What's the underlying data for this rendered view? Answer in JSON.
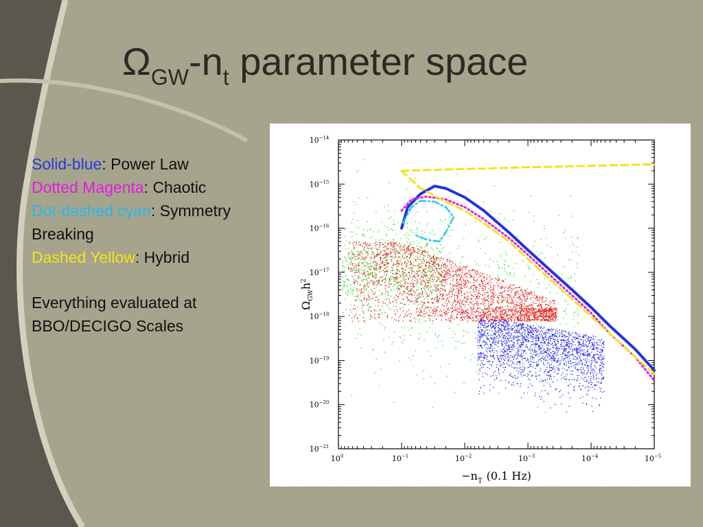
{
  "slide": {
    "title": {
      "prefix": "Ω",
      "sub1": "GW",
      "mid": "-n",
      "sub2": "t",
      "suffix": " parameter space"
    },
    "legend": [
      {
        "name": "Solid-blue",
        "color": "#2b3bd6",
        "desc": ": Power Law"
      },
      {
        "name": "Dotted Magenta",
        "color": "#e21be0",
        "desc": ": Chaotic"
      },
      {
        "name": "Dot-dashed cyan",
        "color": "#2cb7e6",
        "desc": ": Symmetry Breaking"
      },
      {
        "name": "Dashed Yellow",
        "color": "#f2e515",
        "desc": ": Hybrid"
      }
    ],
    "note": "Everything evaluated at BBO/DECIGO Scales"
  },
  "chart_data": {
    "type": "scatter",
    "xscale": "log",
    "yscale": "log",
    "xlim": [
      1,
      1e-05
    ],
    "ylim": [
      1e-21,
      1e-14
    ],
    "xlabel": "−n",
    "xlabel_sub": "T",
    "xlabel_unit": "(0.1 Hz)",
    "ylabel": "Ω",
    "ylabel_sub": "GW",
    "ylabel_sup": "h",
    "ylabel_sup2": "2",
    "x_ticks": [
      {
        "value": 1,
        "base": "10",
        "exp": "0"
      },
      {
        "value": 0.1,
        "base": "10",
        "exp": "−1"
      },
      {
        "value": 0.01,
        "base": "10",
        "exp": "−2"
      },
      {
        "value": 0.001,
        "base": "10",
        "exp": "−3"
      },
      {
        "value": 0.0001,
        "base": "10",
        "exp": "−4"
      },
      {
        "value": 1e-05,
        "base": "10",
        "exp": "−5"
      }
    ],
    "y_ticks": [
      {
        "value": 1e-14,
        "base": "10",
        "exp": "−14"
      },
      {
        "value": 1e-15,
        "base": "10",
        "exp": "−15"
      },
      {
        "value": 1e-16,
        "base": "10",
        "exp": "−16"
      },
      {
        "value": 1e-17,
        "base": "10",
        "exp": "−17"
      },
      {
        "value": 1e-18,
        "base": "10",
        "exp": "−18"
      },
      {
        "value": 1e-19,
        "base": "10",
        "exp": "−19"
      },
      {
        "value": 1e-20,
        "base": "10",
        "exp": "−20"
      },
      {
        "value": 1e-21,
        "base": "10",
        "exp": "−21"
      }
    ],
    "series": [
      {
        "name": "Solid-blue",
        "model": "Power Law",
        "style": "solid",
        "color": "#2233dd",
        "points": [
          [
            0.1,
            1e-16
          ],
          [
            0.08,
            3e-16
          ],
          [
            0.05,
            6e-16
          ],
          [
            0.03,
            9e-16
          ],
          [
            0.02,
            8e-16
          ],
          [
            0.01,
            5e-16
          ],
          [
            0.005,
            2.5e-16
          ],
          [
            0.002,
            8e-17
          ],
          [
            0.001,
            3.2e-17
          ],
          [
            0.0005,
            1.3e-17
          ],
          [
            0.0002,
            4e-18
          ],
          [
            0.0001,
            1.6e-18
          ],
          [
            5e-05,
            6e-19
          ],
          [
            2e-05,
            1.8e-19
          ],
          [
            1e-05,
            6e-20
          ]
        ]
      },
      {
        "name": "Dotted Magenta",
        "model": "Chaotic",
        "style": "dotted",
        "color": "#e020e0",
        "points": [
          [
            0.1,
            2.5e-16
          ],
          [
            0.07,
            4.5e-16
          ],
          [
            0.04,
            5.2e-16
          ],
          [
            0.02,
            4.5e-16
          ],
          [
            0.01,
            3e-16
          ],
          [
            0.005,
            1.6e-16
          ],
          [
            0.002,
            6e-17
          ],
          [
            0.001,
            2.5e-17
          ],
          [
            0.0005,
            1e-17
          ],
          [
            0.0002,
            3e-18
          ],
          [
            0.0001,
            1.2e-18
          ],
          [
            5e-05,
            4e-19
          ],
          [
            2e-05,
            1.2e-19
          ],
          [
            1e-05,
            3.5e-20
          ]
        ]
      },
      {
        "name": "Dot-dashed cyan",
        "model": "Symmetry Breaking",
        "style": "dotdash",
        "color": "#22ccee",
        "points": [
          [
            0.095,
            1.3e-16
          ],
          [
            0.07,
            3e-16
          ],
          [
            0.05,
            4.2e-16
          ],
          [
            0.03,
            4e-16
          ],
          [
            0.02,
            3e-16
          ],
          [
            0.015,
            1.8e-16
          ],
          [
            0.02,
            8e-17
          ],
          [
            0.025,
            5e-17
          ],
          [
            0.04,
            5.5e-17
          ],
          [
            0.06,
            7e-17
          ]
        ]
      },
      {
        "name": "Dashed Yellow",
        "model": "Hybrid",
        "style": "dashed",
        "color": "#f5e21a",
        "points": [
          [
            0.1,
            2e-15
          ],
          [
            0.03,
            2.1e-15
          ],
          [
            0.01,
            2.2e-15
          ],
          [
            0.003,
            2.3e-15
          ],
          [
            0.001,
            2.4e-15
          ],
          [
            0.0003,
            2.5e-15
          ],
          [
            0.0001,
            2.6e-15
          ],
          [
            3e-05,
            2.7e-15
          ],
          [
            1e-05,
            2.8e-15
          ]
        ],
        "branch": [
          [
            0.1,
            2e-15
          ],
          [
            0.05,
            8e-16
          ],
          [
            0.02,
            4e-16
          ],
          [
            0.01,
            2.5e-16
          ],
          [
            0.005,
            1.3e-16
          ],
          [
            0.002,
            5e-17
          ],
          [
            0.001,
            2e-17
          ],
          [
            0.0005,
            8e-18
          ],
          [
            0.0002,
            2.5e-18
          ],
          [
            0.0001,
            1e-18
          ],
          [
            5e-05,
            4e-19
          ],
          [
            2e-05,
            1.2e-19
          ],
          [
            1e-05,
            5e-20
          ]
        ]
      }
    ],
    "scatter_clouds": [
      {
        "color": "#22dd22",
        "description_region": "broad",
        "count": 1400
      },
      {
        "color": "#ee2222",
        "description_region": "dense-band",
        "count": 4200
      },
      {
        "color": "#2222ee",
        "description_region": "lower-band",
        "count": 2000
      }
    ]
  }
}
